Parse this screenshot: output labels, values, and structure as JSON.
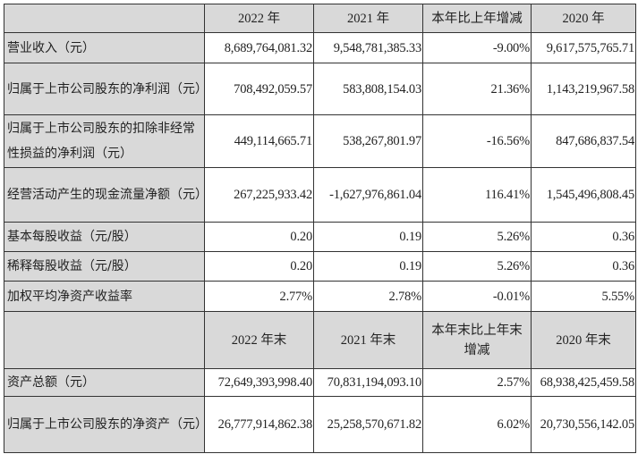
{
  "header": [
    "2022 年",
    "2021 年",
    "本年比上年增减",
    "2020 年"
  ],
  "rows": [
    {
      "label": "营业收入（元）",
      "values": [
        "8,689,764,081.32",
        "9,548,781,385.33",
        "-9.00%",
        "9,617,575,765.71"
      ]
    },
    {
      "label": "归属于上市公司股东的净利润（元）",
      "values": [
        "708,492,059.57",
        "583,808,154.03",
        "21.36%",
        "1,143,219,967.58"
      ]
    },
    {
      "label": "归属于上市公司股东的扣除非经常性损益的净利润（元）",
      "values": [
        "449,114,665.71",
        "538,267,801.97",
        "-16.56%",
        "847,686,837.54"
      ]
    },
    {
      "label": "经营活动产生的现金流量净额（元）",
      "values": [
        "267,225,933.42",
        "-1,627,976,861.04",
        "116.41%",
        "1,545,496,808.45"
      ]
    },
    {
      "label": "基本每股收益（元/股）",
      "values": [
        "0.20",
        "0.19",
        "5.26%",
        "0.36"
      ]
    },
    {
      "label": "稀释每股收益（元/股）",
      "values": [
        "0.20",
        "0.19",
        "5.26%",
        "0.36"
      ]
    },
    {
      "label": "加权平均净资产收益率",
      "values": [
        "2.77%",
        "2.78%",
        "-0.01%",
        "5.55%"
      ]
    }
  ],
  "header2": [
    "2022 年末",
    "2021 年末",
    "本年末比上年末增减",
    "2020 年末"
  ],
  "rows2": [
    {
      "label": "资产总额（元）",
      "values": [
        "72,649,393,998.40",
        "70,831,194,093.10",
        "2.57%",
        "68,938,425,459.58"
      ]
    },
    {
      "label": "归属于上市公司股东的净资产（元）",
      "values": [
        "26,777,914,862.38",
        "25,258,570,671.82",
        "6.02%",
        "20,730,556,142.05"
      ]
    }
  ]
}
